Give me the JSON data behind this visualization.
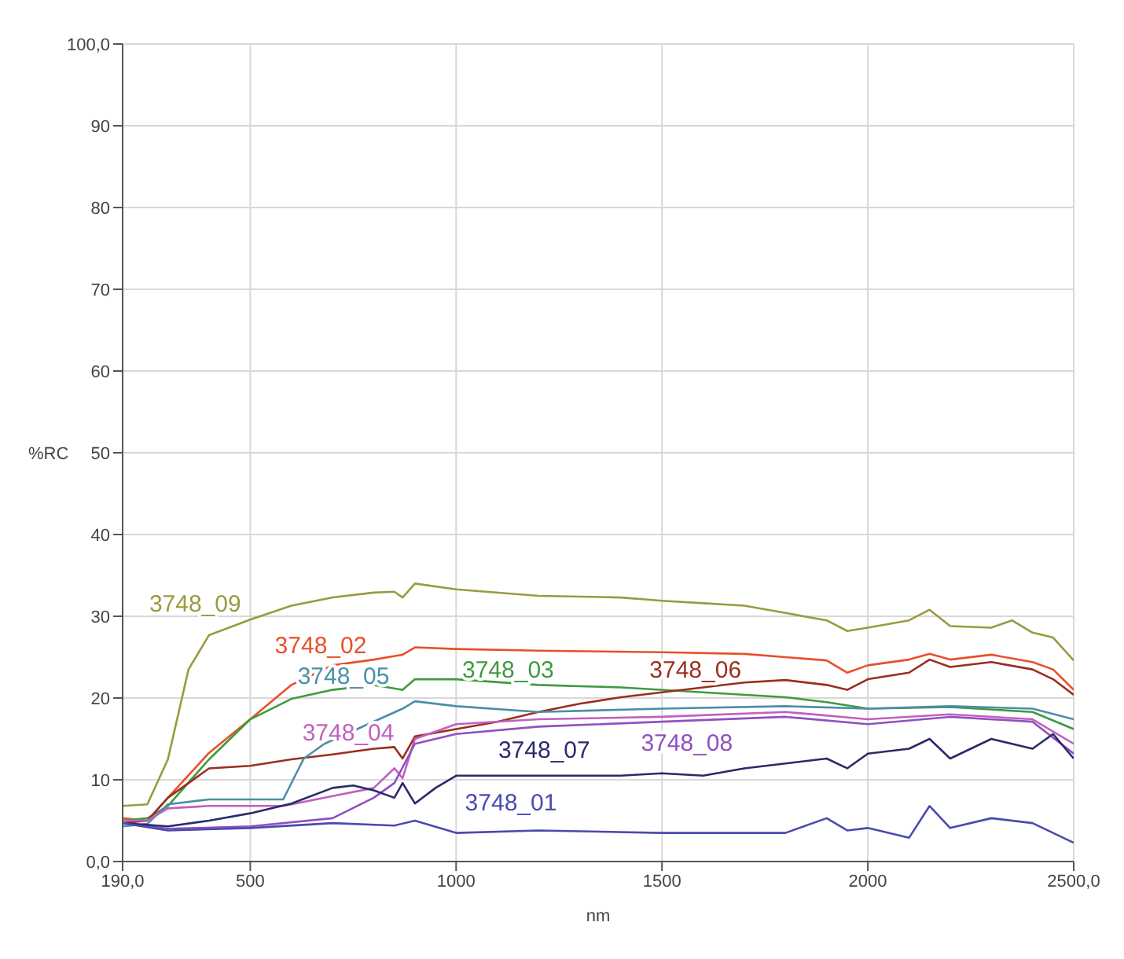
{
  "chart_data": {
    "type": "line",
    "xlabel": "nm",
    "ylabel": "%RC",
    "xlim": [
      190,
      2500
    ],
    "ylim": [
      0,
      100
    ],
    "xticks": [
      {
        "value": 190,
        "label": "190,0"
      },
      500,
      1000,
      1500,
      2000,
      {
        "value": 2500,
        "label": "2500,0"
      }
    ],
    "yticks": [
      {
        "value": 0,
        "label": "0,0"
      },
      10,
      20,
      30,
      40,
      50,
      60,
      70,
      80,
      90,
      {
        "value": 100,
        "label": "100,0"
      }
    ],
    "grid": true,
    "legend": false,
    "marker": "none",
    "line_style": "solid",
    "series": [
      {
        "name": "3748_09",
        "color": "#9a9a40",
        "x": [
          190,
          250,
          300,
          350,
          400,
          500,
          600,
          700,
          800,
          850,
          870,
          900,
          1000,
          1200,
          1400,
          1500,
          1600,
          1700,
          1800,
          1900,
          1950,
          2000,
          2100,
          2150,
          2200,
          2300,
          2350,
          2400,
          2450,
          2500
        ],
        "values": [
          6.8,
          7,
          12.5,
          23.5,
          27.7,
          29.6,
          31.3,
          32.3,
          32.9,
          33,
          32.3,
          34,
          33.3,
          32.5,
          32.3,
          31.9,
          31.6,
          31.3,
          30.4,
          29.5,
          28.2,
          28.6,
          29.5,
          30.8,
          28.8,
          28.6,
          29.5,
          28,
          27.4,
          24.6
        ]
      },
      {
        "name": "3748_02",
        "color": "#e8502a",
        "x": [
          190,
          250,
          300,
          400,
          500,
          600,
          700,
          800,
          870,
          900,
          1000,
          1200,
          1500,
          1700,
          1800,
          1900,
          1950,
          2000,
          2100,
          2150,
          2200,
          2300,
          2400,
          2450,
          2500
        ],
        "values": [
          5.3,
          5,
          7.8,
          13.3,
          17.4,
          21.6,
          24,
          24.7,
          25.3,
          26.2,
          26,
          25.8,
          25.6,
          25.4,
          25,
          24.6,
          23.1,
          24,
          24.7,
          25.4,
          24.7,
          25.3,
          24.4,
          23.5,
          21
        ]
      },
      {
        "name": "3748_03",
        "color": "#3f9a3f",
        "x": [
          190,
          250,
          300,
          400,
          500,
          600,
          700,
          800,
          870,
          900,
          1000,
          1200,
          1400,
          1600,
          1800,
          1900,
          2000,
          2200,
          2400,
          2500
        ],
        "values": [
          5,
          5.3,
          6.8,
          12.5,
          17.4,
          19.9,
          21,
          21.6,
          21,
          22.3,
          22.3,
          21.6,
          21.3,
          20.7,
          20.1,
          19.5,
          18.7,
          18.9,
          18.3,
          16.2
        ]
      },
      {
        "name": "3748_06",
        "color": "#9a2e1e",
        "x": [
          190,
          250,
          300,
          400,
          500,
          600,
          700,
          800,
          850,
          870,
          900,
          1000,
          1100,
          1200,
          1300,
          1400,
          1500,
          1600,
          1700,
          1800,
          1900,
          1950,
          2000,
          2100,
          2150,
          2200,
          2300,
          2400,
          2450,
          2500
        ],
        "values": [
          4.7,
          5,
          7.8,
          11.4,
          11.7,
          12.5,
          13.1,
          13.8,
          14,
          12.6,
          15.3,
          16.2,
          17.1,
          18.3,
          19.3,
          20.1,
          20.7,
          21.3,
          21.9,
          22.2,
          21.6,
          21,
          22.3,
          23.1,
          24.7,
          23.8,
          24.4,
          23.5,
          22.3,
          20.4
        ]
      },
      {
        "name": "3748_05",
        "color": "#4a8fa8",
        "x": [
          190,
          250,
          300,
          400,
          500,
          580,
          630,
          680,
          870,
          900,
          1000,
          1200,
          1500,
          1800,
          2000,
          2200,
          2400,
          2500
        ],
        "values": [
          4.3,
          4.6,
          7,
          7.6,
          7.6,
          7.6,
          12.6,
          14.4,
          18.7,
          19.6,
          19,
          18.3,
          18.7,
          19,
          18.7,
          19,
          18.7,
          17.4
        ]
      },
      {
        "name": "3748_04",
        "color": "#c060c0",
        "x": [
          190,
          250,
          300,
          400,
          500,
          580,
          600,
          700,
          800,
          850,
          870,
          900,
          1000,
          1200,
          1500,
          1800,
          2000,
          2200,
          2400,
          2500
        ],
        "values": [
          5,
          5,
          6.5,
          6.8,
          6.8,
          6.8,
          7,
          8,
          9,
          11.4,
          10.2,
          15,
          16.8,
          17.4,
          17.7,
          18.3,
          17.4,
          18,
          17.4,
          14.4
        ]
      },
      {
        "name": "3748_08",
        "color": "#9050c0",
        "x": [
          190,
          300,
          500,
          700,
          800,
          850,
          900,
          1000,
          1200,
          1500,
          1800,
          2000,
          2200,
          2400,
          2500
        ],
        "values": [
          4.7,
          4,
          4.3,
          5.3,
          7.8,
          9.6,
          14.4,
          15.6,
          16.5,
          17.1,
          17.7,
          16.8,
          17.7,
          17.1,
          13.2
        ]
      },
      {
        "name": "3748_07",
        "color": "#2a2a6a",
        "x": [
          190,
          300,
          400,
          500,
          600,
          700,
          750,
          800,
          850,
          870,
          900,
          950,
          1000,
          1200,
          1400,
          1500,
          1600,
          1700,
          1800,
          1900,
          1950,
          2000,
          2100,
          2150,
          2200,
          2300,
          2400,
          2450,
          2500
        ],
        "values": [
          4.7,
          4.3,
          5,
          5.9,
          7.1,
          9,
          9.3,
          8.7,
          7.8,
          9.6,
          7.1,
          9,
          10.5,
          10.5,
          10.5,
          10.8,
          10.5,
          11.4,
          12,
          12.6,
          11.4,
          13.2,
          13.8,
          15,
          12.6,
          15,
          13.8,
          15.6,
          12.6
        ]
      },
      {
        "name": "3748_01",
        "color": "#4a4ab0",
        "x": [
          190,
          300,
          500,
          700,
          850,
          900,
          1000,
          1200,
          1500,
          1800,
          1900,
          1950,
          2000,
          2100,
          2150,
          2200,
          2300,
          2400,
          2500
        ],
        "values": [
          4.7,
          3.8,
          4.1,
          4.7,
          4.4,
          5,
          3.5,
          3.8,
          3.5,
          3.5,
          5.3,
          3.8,
          4.1,
          2.9,
          6.8,
          4.1,
          5.3,
          4.7,
          2.3
        ]
      }
    ]
  }
}
